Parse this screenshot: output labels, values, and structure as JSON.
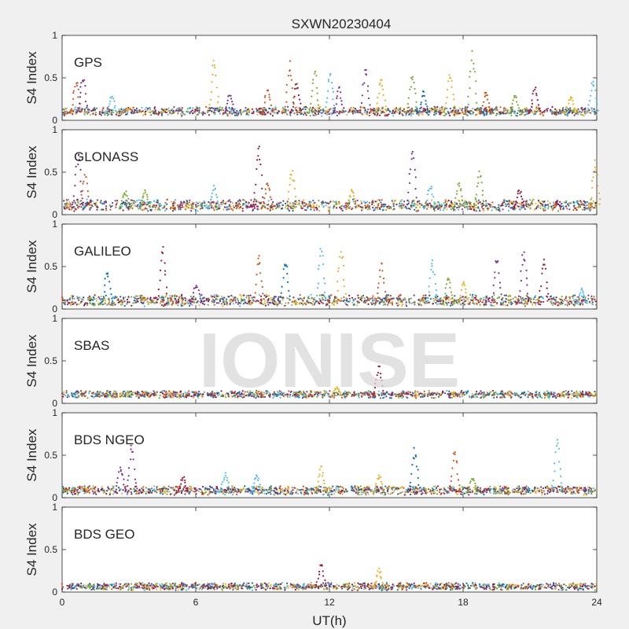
{
  "chart_data": {
    "type": "scatter",
    "title": "SXWN20230404",
    "xlabel": "UT(h)",
    "ylabel": "S4 Index",
    "xlim": [
      0,
      24
    ],
    "ylim": [
      0,
      1
    ],
    "xticks": [
      "0",
      "6",
      "12",
      "18",
      "24"
    ],
    "yticks": [
      "0",
      "0.5",
      "1"
    ],
    "watermark": "IONISE",
    "grid": false,
    "series_colors": [
      "#0072bd",
      "#d95319",
      "#edb120",
      "#7e2f8e",
      "#77ac30",
      "#4dbeee",
      "#a2142f"
    ],
    "panels": [
      {
        "name": "GPS",
        "baseline": [
          0.07,
          0.14
        ],
        "spikes": [
          [
            0.6,
            0.5,
            1
          ],
          [
            0.9,
            0.55,
            3
          ],
          [
            2.2,
            0.3,
            5
          ],
          [
            6.8,
            0.75,
            2
          ],
          [
            7.5,
            0.3,
            3
          ],
          [
            9.2,
            0.4,
            1
          ],
          [
            10.2,
            0.7,
            1
          ],
          [
            10.5,
            0.45,
            6
          ],
          [
            11.3,
            0.6,
            4
          ],
          [
            12.0,
            0.6,
            5
          ],
          [
            12.4,
            0.4,
            3
          ],
          [
            13.6,
            0.65,
            3
          ],
          [
            14.3,
            0.55,
            2
          ],
          [
            15.7,
            0.55,
            4
          ],
          [
            16.2,
            0.35,
            0
          ],
          [
            17.4,
            0.58,
            2
          ],
          [
            18.4,
            0.82,
            4
          ],
          [
            19.0,
            0.35,
            1
          ],
          [
            20.3,
            0.3,
            4
          ],
          [
            21.2,
            0.4,
            6
          ],
          [
            22.8,
            0.3,
            2
          ],
          [
            23.8,
            0.5,
            5
          ]
        ]
      },
      {
        "name": "GLONASS",
        "baseline": [
          0.06,
          0.16
        ],
        "spikes": [
          [
            0.7,
            0.75,
            3
          ],
          [
            1.0,
            0.5,
            1
          ],
          [
            2.8,
            0.3,
            4
          ],
          [
            3.7,
            0.3,
            4
          ],
          [
            6.8,
            0.35,
            5
          ],
          [
            8.8,
            0.85,
            6
          ],
          [
            9.2,
            0.4,
            1
          ],
          [
            10.3,
            0.55,
            2
          ],
          [
            13.0,
            0.3,
            2
          ],
          [
            15.7,
            0.8,
            3
          ],
          [
            16.5,
            0.35,
            5
          ],
          [
            17.8,
            0.4,
            4
          ],
          [
            18.7,
            0.55,
            4
          ],
          [
            20.5,
            0.3,
            6
          ],
          [
            23.9,
            0.65,
            2
          ]
        ]
      },
      {
        "name": "GALILEO",
        "baseline": [
          0.05,
          0.15
        ],
        "spikes": [
          [
            2.0,
            0.45,
            0
          ],
          [
            4.5,
            0.75,
            6
          ],
          [
            6.0,
            0.3,
            3
          ],
          [
            8.8,
            0.65,
            1
          ],
          [
            10.0,
            0.62,
            0
          ],
          [
            11.6,
            0.75,
            5
          ],
          [
            12.5,
            0.7,
            2
          ],
          [
            14.3,
            0.55,
            1
          ],
          [
            16.6,
            0.6,
            5
          ],
          [
            17.3,
            0.4,
            4
          ],
          [
            18.0,
            0.35,
            2
          ],
          [
            19.5,
            0.65,
            3
          ],
          [
            20.7,
            0.7,
            3
          ],
          [
            21.6,
            0.65,
            6
          ],
          [
            23.3,
            0.25,
            5
          ]
        ]
      },
      {
        "name": "SBAS",
        "baseline": [
          0.08,
          0.13
        ],
        "spikes": [
          [
            14.2,
            0.45,
            6
          ],
          [
            12.3,
            0.2,
            2
          ]
        ]
      },
      {
        "name": "BDS NGEO",
        "baseline": [
          0.05,
          0.12
        ],
        "spikes": [
          [
            2.6,
            0.38,
            3
          ],
          [
            3.1,
            0.62,
            3
          ],
          [
            5.4,
            0.25,
            6
          ],
          [
            7.3,
            0.3,
            5
          ],
          [
            8.7,
            0.28,
            5
          ],
          [
            11.6,
            0.38,
            2
          ],
          [
            14.2,
            0.28,
            2
          ],
          [
            15.8,
            0.6,
            0
          ],
          [
            17.6,
            0.58,
            1
          ],
          [
            18.4,
            0.25,
            4
          ],
          [
            22.2,
            0.7,
            5
          ]
        ]
      },
      {
        "name": "BDS GEO",
        "baseline": [
          0.04,
          0.09
        ],
        "spikes": [
          [
            11.6,
            0.35,
            6
          ],
          [
            14.2,
            0.28,
            2
          ]
        ]
      }
    ]
  }
}
